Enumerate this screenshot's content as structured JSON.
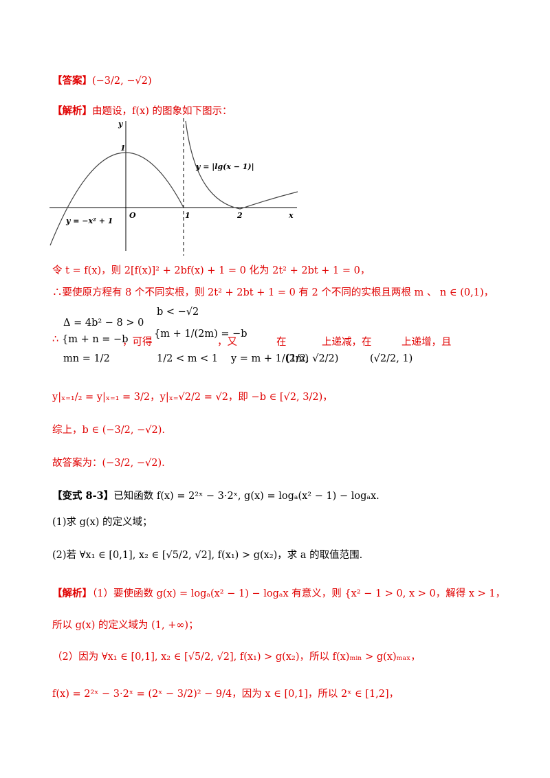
{
  "answer": {
    "label": "【答案】",
    "text": "(−3/2, −√2)"
  },
  "analysis": {
    "label": "【解析】",
    "text": "由题设，f(x) 的图象如下图示："
  },
  "graph": {
    "y_axis": "y",
    "x_axis": "x",
    "origin": "O",
    "y_tick": "1",
    "x_ticks": [
      "1",
      "2"
    ],
    "curve_left": "y = −x² + 1",
    "curve_right": "y = |lg(x − 1)|"
  },
  "lines": [
    "令 t = f(x)，则 2[f(x)]² + 2bf(x) + 1 = 0 化为 2t² + 2bt + 1 = 0，",
    "∴要使原方程有 8 个不同实根，则 2t² + 2bt + 1 = 0 有 2 个不同的实根且两根 m 、 n ∈ (0,1)，"
  ],
  "system_block": {
    "therefore": "∴",
    "system1": [
      "Δ = 4b² − 8 > 0",
      "{m + n = −b",
      "mn = 1/2"
    ],
    "obtain": "，可得",
    "system2": [
      "b < −√2",
      "{m + 1/(2m) = −b",
      "1/2 < m < 1"
    ],
    "also": "，又",
    "func": "y = m + 1/(2m)",
    "in1": "在",
    "interval1": "(1/2, √2/2)",
    "dec": "上递减，在",
    "interval2": "(√2/2, 1)",
    "inc": "上递增，且"
  },
  "lines2": [
    "y|ₓ₌₁/₂ = y|ₓ₌₁ = 3/2，y|ₓ₌√2/2 = √2，即 −b ∈ [√2, 3/2)，",
    "综上，b ∈ (−3/2, −√2).",
    "故答案为：(−3/2, −√2)."
  ],
  "variant": {
    "label": "【变式 8-3】",
    "text": "已知函数 f(x) = 2²ˣ − 3·2ˣ, g(x) = logₐ(x² − 1) − logₐx."
  },
  "questions": [
    "(1)求 g(x) 的定义域；",
    "(2)若 ∀x₁ ∈ [0,1], x₂ ∈ [√5/2, √2], f(x₁) > g(x₂)，求 a 的取值范围."
  ],
  "solution": {
    "label": "【解析】",
    "lines": [
      "（1）要使函数 g(x) = logₐ(x² − 1) − logₐx 有意义，则 {x² − 1 > 0, x > 0，解得 x > 1，",
      "所以 g(x) 的定义域为 (1, +∞)；",
      "（2）因为 ∀x₁ ∈ [0,1], x₂ ∈ [√5/2, √2], f(x₁) > g(x₂)，所以 f(x)ₘᵢₙ > g(x)ₘₐₓ，",
      "f(x) = 2²ˣ − 3·2ˣ = (2ˣ − 3/2)² − 9/4，因为 x ∈ [0,1]，所以 2ˣ ∈ [1,2]，"
    ]
  }
}
